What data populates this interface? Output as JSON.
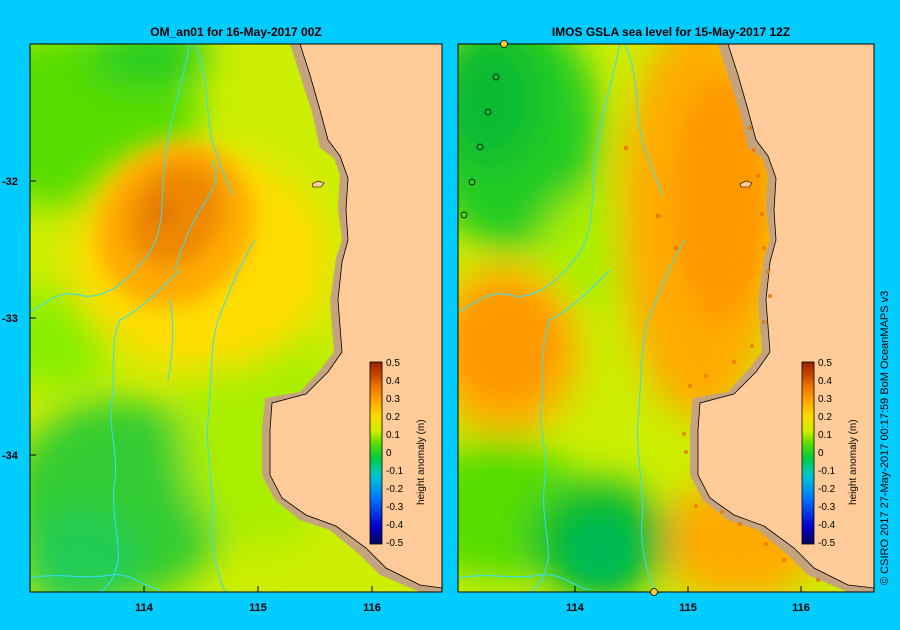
{
  "panels": [
    {
      "title": "OM_an01  for 16-May-2017 00Z",
      "x_ticks": [
        "114",
        "115",
        "116"
      ],
      "y_ticks": [
        "-32",
        "-33",
        "-34"
      ],
      "colorbar": {
        "label": "height anomaly (m)",
        "ticks": [
          "0.5",
          "0.4",
          "0.3",
          "0.2",
          "0.1",
          "0",
          "-0.1",
          "-0.2",
          "-0.3",
          "-0.4",
          "-0.5"
        ]
      }
    },
    {
      "title": "IMOS GSLA sea level  for 15-May-2017 12Z",
      "x_ticks": [
        "114",
        "115",
        "116"
      ],
      "colorbar": {
        "label": "height anomaly (m)",
        "ticks": [
          "0.5",
          "0.4",
          "0.3",
          "0.2",
          "0.1",
          "0",
          "-0.1",
          "-0.2",
          "-0.3",
          "-0.4",
          "-0.5"
        ]
      }
    }
  ],
  "credit": "© CSIRO 2017   27-May-2017 00:17:59 BoM OceanMAPS v3",
  "colors": {
    "background": "#00ccff",
    "land": "#ffcc99",
    "shelf": "#c4a37e",
    "contour_line": "#33ddff",
    "colorscale": [
      "#000080",
      "#0000cc",
      "#0066ff",
      "#00b3e6",
      "#00cc66",
      "#00dd00",
      "#88ee00",
      "#e6f000",
      "#ffcc00",
      "#ff9900",
      "#e65c00",
      "#b32d00",
      "#8b1a00"
    ]
  }
}
